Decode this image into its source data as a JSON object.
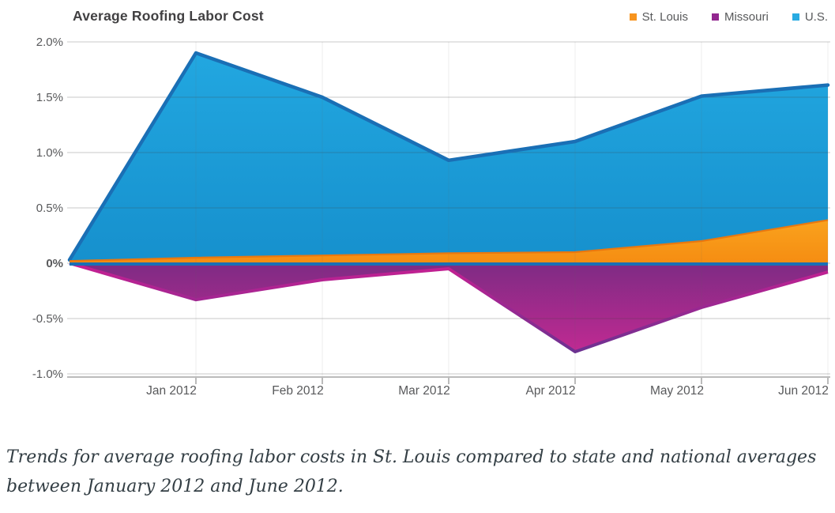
{
  "chart": {
    "title": "Average Roofing Labor Cost",
    "legend": [
      {
        "label": "St. Louis",
        "color": "#F7941E"
      },
      {
        "label": "Missouri",
        "color": "#92278F"
      },
      {
        "label": "U.S.",
        "color": "#29ABE2"
      }
    ]
  },
  "chart_data": {
    "type": "area",
    "title": "Average Roofing Labor Cost",
    "unit": "percent",
    "categories": [
      "start (left edge, unlabeled)",
      "Jan 2012",
      "Feb 2012",
      "Mar 2012",
      "Apr 2012",
      "May 2012",
      "Jun 2012"
    ],
    "x_axis_labels": [
      "Jan 2012",
      "Feb 2012",
      "Mar 2012",
      "Apr 2012",
      "May 2012",
      "Jun 2012"
    ],
    "y_ticks": [
      {
        "value": 2.0,
        "label": "2.0%"
      },
      {
        "value": 1.5,
        "label": "1.5%"
      },
      {
        "value": 1.0,
        "label": "1.0%"
      },
      {
        "value": 0.5,
        "label": "0.5%"
      },
      {
        "value": 0.0,
        "label": "0%"
      },
      {
        "value": -0.5,
        "label": "-0.5%"
      },
      {
        "value": -1.0,
        "label": "-1.0%"
      }
    ],
    "ylim": [
      -1.0,
      2.0
    ],
    "grid": "horizontal gridlines plus faint vertical month lines, drawn over the filled areas",
    "legend_position": "top-right",
    "series": [
      {
        "name": "St. Louis",
        "values": [
          0.02,
          0.05,
          0.07,
          0.09,
          0.1,
          0.2,
          0.39
        ],
        "fill_top": "#FAA21D",
        "fill_bottom": "#F58D12",
        "stroke": "#E9780F"
      },
      {
        "name": "Missouri",
        "values": [
          0.0,
          -0.33,
          -0.15,
          -0.05,
          -0.8,
          -0.4,
          -0.08
        ],
        "fill_top": "#7E2B84",
        "fill_bottom": "#C02A92",
        "stroke_top": "#C81F92",
        "stroke_bottom": "#6C3191"
      },
      {
        "name": "U.S.",
        "values": [
          0.03,
          1.9,
          1.5,
          0.93,
          1.1,
          1.51,
          1.61
        ],
        "fill_top": "#22A7E0",
        "fill_bottom": "#1690CD",
        "stroke": "#1A6FB5"
      }
    ],
    "baseline_color": "#1A6FB5",
    "axis_color": "#BBBBBB",
    "tick_label_color": "#58595B"
  },
  "caption": {
    "text": "Trends for average roofing labor costs in St. Louis compared to state and national averages between January 2012 and June 2012."
  }
}
